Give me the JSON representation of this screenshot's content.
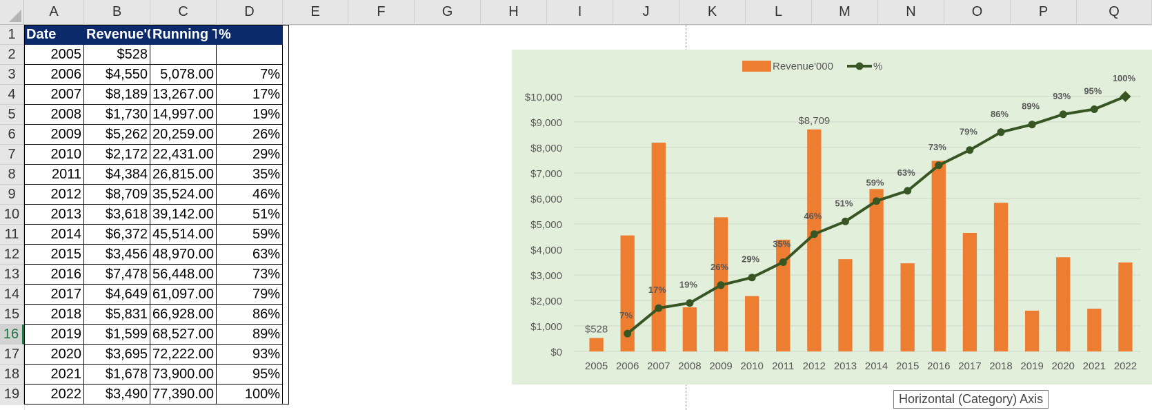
{
  "columns": [
    "A",
    "B",
    "C",
    "D",
    "E",
    "F",
    "G",
    "H",
    "I",
    "J",
    "K",
    "L",
    "M",
    "N",
    "O",
    "P",
    "Q"
  ],
  "rows": [
    "1",
    "2",
    "3",
    "4",
    "5",
    "6",
    "7",
    "8",
    "9",
    "10",
    "11",
    "12",
    "13",
    "14",
    "15",
    "16",
    "17",
    "18",
    "19"
  ],
  "selected_row": "16",
  "table": {
    "headers": [
      "Date",
      "Revenue'0",
      "Running T",
      "%"
    ],
    "rows": [
      [
        "2005",
        "$528",
        "",
        ""
      ],
      [
        "2006",
        "$4,550",
        "5,078.00",
        "7%"
      ],
      [
        "2007",
        "$8,189",
        "13,267.00",
        "17%"
      ],
      [
        "2008",
        "$1,730",
        "14,997.00",
        "19%"
      ],
      [
        "2009",
        "$5,262",
        "20,259.00",
        "26%"
      ],
      [
        "2010",
        "$2,172",
        "22,431.00",
        "29%"
      ],
      [
        "2011",
        "$4,384",
        "26,815.00",
        "35%"
      ],
      [
        "2012",
        "$8,709",
        "35,524.00",
        "46%"
      ],
      [
        "2013",
        "$3,618",
        "39,142.00",
        "51%"
      ],
      [
        "2014",
        "$6,372",
        "45,514.00",
        "59%"
      ],
      [
        "2015",
        "$3,456",
        "48,970.00",
        "63%"
      ],
      [
        "2016",
        "$7,478",
        "56,448.00",
        "73%"
      ],
      [
        "2017",
        "$4,649",
        "61,097.00",
        "79%"
      ],
      [
        "2018",
        "$5,831",
        "66,928.00",
        "86%"
      ],
      [
        "2019",
        "$1,599",
        "68,527.00",
        "89%"
      ],
      [
        "2020",
        "$3,695",
        "72,222.00",
        "93%"
      ],
      [
        "2021",
        "$1,678",
        "73,900.00",
        "95%"
      ],
      [
        "2022",
        "$3,490",
        "77,390.00",
        "100%"
      ]
    ]
  },
  "chart_data": {
    "type": "bar",
    "categories": [
      "2005",
      "2006",
      "2007",
      "2008",
      "2009",
      "2010",
      "2011",
      "2012",
      "2013",
      "2014",
      "2015",
      "2016",
      "2017",
      "2018",
      "2019",
      "2020",
      "2021",
      "2022"
    ],
    "series": [
      {
        "name": "Revenue'000",
        "type": "bar",
        "axis": "primary",
        "values": [
          528,
          4550,
          8189,
          1730,
          5262,
          2172,
          4384,
          8709,
          3618,
          6372,
          3456,
          7478,
          4649,
          5831,
          1599,
          3695,
          1678,
          3490
        ]
      },
      {
        "name": "%",
        "type": "line",
        "axis": "secondary",
        "values": [
          null,
          7,
          17,
          19,
          26,
          29,
          35,
          46,
          51,
          59,
          63,
          73,
          79,
          86,
          89,
          93,
          95,
          100
        ],
        "labels": [
          "",
          "7%",
          "17%",
          "19%",
          "26%",
          "29%",
          "35%",
          "46%",
          "51%",
          "59%",
          "63%",
          "73%",
          "79%",
          "86%",
          "89%",
          "93%",
          "95%",
          "100%"
        ]
      }
    ],
    "bar_data_labels": {
      "0": "$528",
      "7": "$8,709"
    },
    "y_tick_labels": [
      "$0",
      "$1,000",
      "$2,000",
      "$3,000",
      "$4,000",
      "$5,000",
      "$6,000",
      "$7,000",
      "$8,000",
      "$9,000",
      "$10,000"
    ],
    "ylim": [
      0,
      10000
    ],
    "y2lim": [
      0,
      100
    ],
    "grid": true,
    "legend": "top",
    "colors": {
      "bar": "#ed7d31",
      "line": "#375623",
      "background": "#e2efda"
    }
  },
  "tooltip": "Horizontal (Category) Axis"
}
